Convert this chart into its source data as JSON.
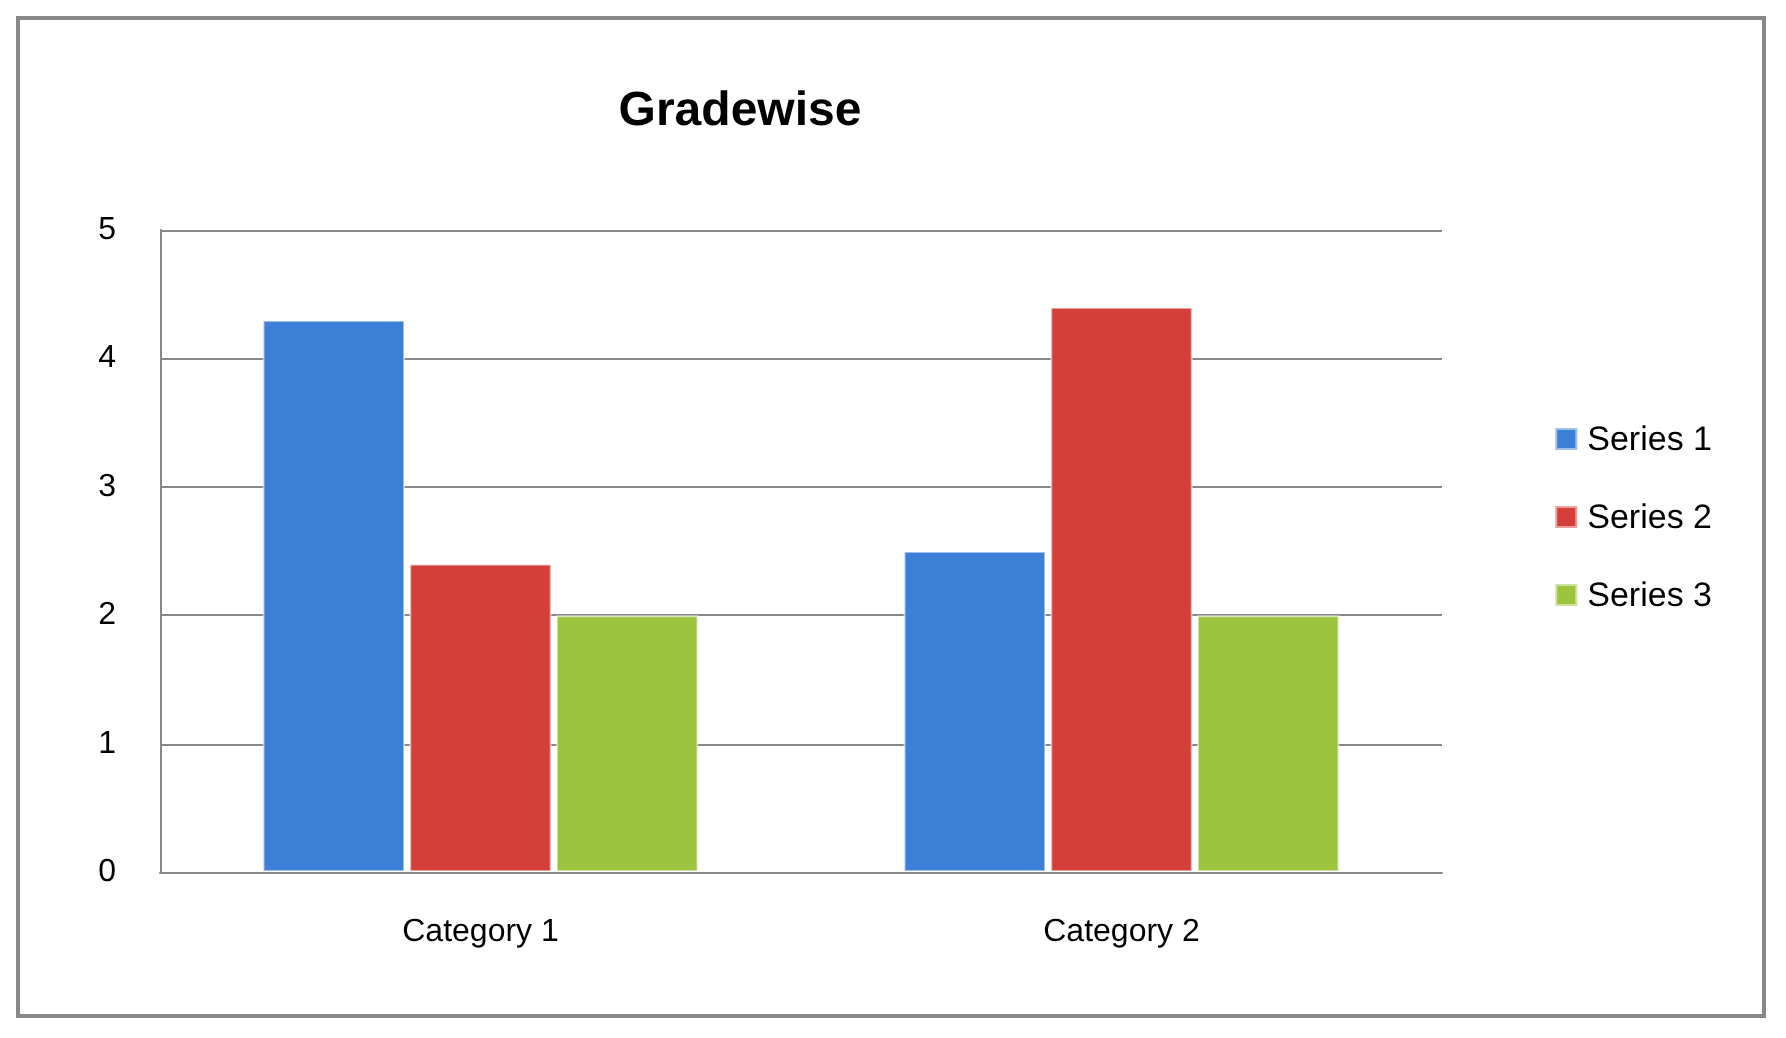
{
  "chart_data": {
    "type": "bar",
    "title": "Gradewise",
    "categories": [
      "Category 1",
      "Category 2"
    ],
    "series": [
      {
        "name": "Series 1",
        "color": "#3c7fd6",
        "values": [
          4.3,
          2.5
        ]
      },
      {
        "name": "Series 2",
        "color": "#d43f3a",
        "values": [
          2.4,
          4.4
        ]
      },
      {
        "name": "Series 3",
        "color": "#9cc43f",
        "values": [
          2.0,
          2.0
        ]
      }
    ],
    "ylim": [
      0,
      5
    ],
    "yticks": [
      0,
      1,
      2,
      3,
      4,
      5
    ],
    "grid": "y",
    "legend": "right"
  }
}
